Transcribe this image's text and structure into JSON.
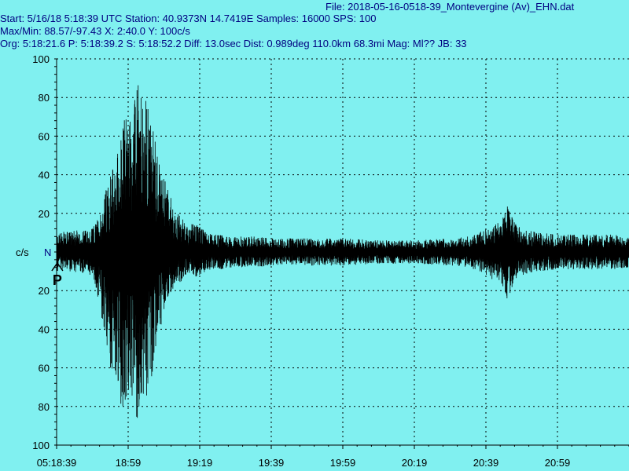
{
  "header": {
    "file_line": "File: 2018-05-16-0518-39_Montevergine (Av)_EHN.dat",
    "line1": "Start: 5/16/18  5:18:39 UTC Station:  40.9373N 14.7419E Samples: 16000  SPS: 100",
    "line2": "Max/Min: 88.57/-97.43 X: 2:40.0 Y: 100c/s",
    "line3": "Org: 5:18:21.6 P: 5:18:39.2 S: 5:18:52.2 Diff: 13.0sec Dist: 0.989deg 110.0km 68.3mi  Mag: Ml?? JB: 33"
  },
  "colors": {
    "background": "#80f0f0",
    "trace": "#000000",
    "header_text": "#000080"
  },
  "chart_data": {
    "type": "line",
    "ylabel": "c/s",
    "channel_label": "N",
    "phase_marker": "P",
    "x_tick_labels": [
      "05:18:39",
      "18:59",
      "19:19",
      "19:39",
      "19:59",
      "20:19",
      "20:39",
      "20:59"
    ],
    "xlim_seconds_from_start": [
      0,
      160
    ],
    "x_tick_seconds": [
      0,
      20,
      40,
      60,
      80,
      100,
      120,
      140
    ],
    "y_tick_labels": [
      "100",
      "80",
      "60",
      "40",
      "20",
      "20",
      "40",
      "60",
      "80",
      "100"
    ],
    "y_tick_values": [
      100,
      80,
      60,
      40,
      20,
      -20,
      -40,
      -60,
      -80,
      -100
    ],
    "ylim": [
      -100,
      100
    ],
    "max": 88.57,
    "min": -97.43,
    "p_arrival_seconds": 0.2,
    "s_arrival_seconds": 13.2,
    "grid": true,
    "envelope": {
      "t": [
        0,
        10,
        12,
        13,
        15,
        17,
        18,
        19,
        20,
        21,
        22,
        23,
        24,
        25,
        26,
        27,
        28,
        29,
        30,
        31,
        32,
        33,
        34,
        35,
        36,
        37,
        38,
        40,
        42,
        44,
        46,
        48,
        50,
        55,
        60,
        70,
        80,
        90,
        100,
        110,
        115,
        118,
        120,
        125,
        126,
        128,
        130,
        132,
        135,
        140,
        150,
        160
      ],
      "upper": [
        10,
        12,
        20,
        28,
        40,
        55,
        60,
        72,
        82,
        70,
        80,
        88,
        75,
        80,
        72,
        65,
        55,
        45,
        40,
        38,
        28,
        25,
        20,
        18,
        14,
        12,
        15,
        13,
        10,
        9,
        9,
        8,
        8,
        8,
        7,
        7,
        7,
        6,
        6,
        7,
        8,
        10,
        12,
        18,
        25,
        15,
        12,
        11,
        10,
        9,
        9,
        9
      ],
      "lower": [
        -9,
        -12,
        -28,
        -45,
        -60,
        -72,
        -85,
        -82,
        -78,
        -80,
        -85,
        -97,
        -72,
        -80,
        -70,
        -60,
        -48,
        -40,
        -32,
        -28,
        -20,
        -18,
        -16,
        -15,
        -12,
        -11,
        -14,
        -12,
        -10,
        -9,
        -9,
        -8,
        -8,
        -8,
        -7,
        -7,
        -7,
        -6,
        -6,
        -7,
        -8,
        -10,
        -12,
        -18,
        -25,
        -15,
        -12,
        -11,
        -10,
        -9,
        -9,
        -9
      ]
    }
  }
}
